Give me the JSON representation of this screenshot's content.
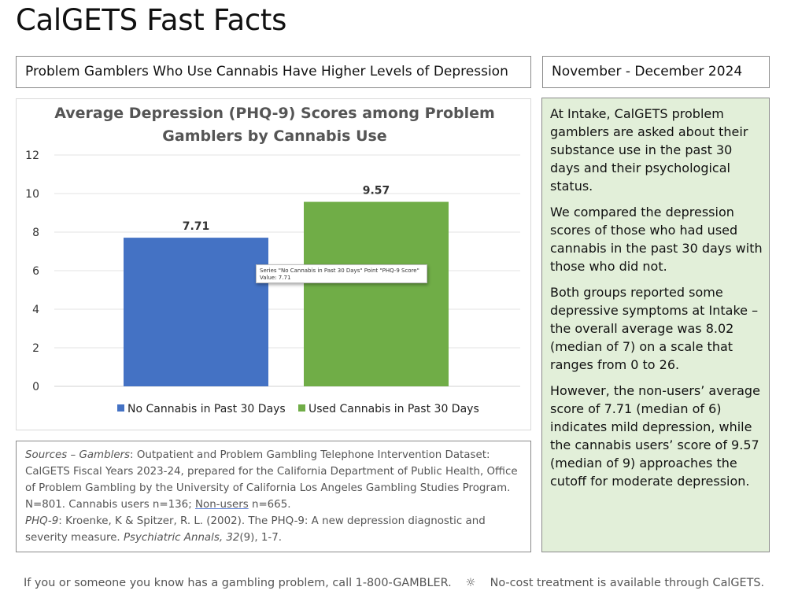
{
  "header": {
    "title": "CalGETS Fast Facts"
  },
  "subtitle": "Problem Gamblers Who Use Cannabis Have Higher Levels of Depression",
  "date_range": "November - December 2024",
  "chart_data": {
    "type": "bar",
    "title": "Average Depression (PHQ-9) Scores among Problem Gamblers by Cannabis Use",
    "title_lines": [
      "Average Depression (PHQ-9) Scores among Problem",
      "Gamblers by Cannabis Use"
    ],
    "categories": [
      "PHQ-9 Score"
    ],
    "series": [
      {
        "name": "No Cannabis in Past 30 Days",
        "values": [
          7.71
        ],
        "color": "#4472c4",
        "label": "7.71"
      },
      {
        "name": "Used Cannabis in Past 30 Days",
        "values": [
          9.57
        ],
        "color": "#70ad47",
        "label": "9.57"
      }
    ],
    "ylim": [
      0,
      12
    ],
    "yticks": [
      "0",
      "2",
      "4",
      "6",
      "8",
      "10",
      "12"
    ],
    "grid": true,
    "legend": "bottom",
    "xlabel": "",
    "ylabel": "",
    "tooltip": {
      "line1": "Series \"No Cannabis in Past 30 Days\" Point \"PHQ-9 Score\"",
      "line2": "Value: 7.71"
    }
  },
  "sources": {
    "label1": "Sources – Gamblers",
    "text1": ": Outpatient and Problem Gambling Telephone Intervention Dataset: CalGETS Fiscal Years 2023-24, prepared for the California Department of Public Health, Office of Problem Gambling by the University of California Los Angeles Gambling Studies Program. N=801. Cannabis users n=136; ",
    "nonusers": "Non-users",
    "text2": " n=665.",
    "label2": "PHQ-9",
    "text3": ": Kroenke, K & Spitzer, R. L. (2002). The PHQ-9: A new depression diagnostic and severity measure. ",
    "journal": "Psychiatric Annals, 32",
    "issue": "(9)",
    "pages": ", 1-7."
  },
  "side_panel": {
    "paragraphs": [
      "At Intake, CalGETS problem gamblers are asked about their substance use in the past 30 days and their psychological status.",
      "We compared the depression scores of those who had used cannabis in the past 30 days with those who did not.",
      "Both groups reported some depressive symptoms at Intake – the overall average was 8.02 (median of 7) on a scale that ranges from 0 to 26.",
      "However, the non-users’ average score of 7.71 (median of 6) indicates mild depression, while the cannabis users’ score of 9.57 (median of 9) approaches the cutoff for moderate depression."
    ]
  },
  "footer": {
    "left": "If you or someone you know has a gambling problem, call 1-800-GAMBLER.",
    "separator": "☼",
    "right": "No-cost treatment is available through CalGETS."
  }
}
